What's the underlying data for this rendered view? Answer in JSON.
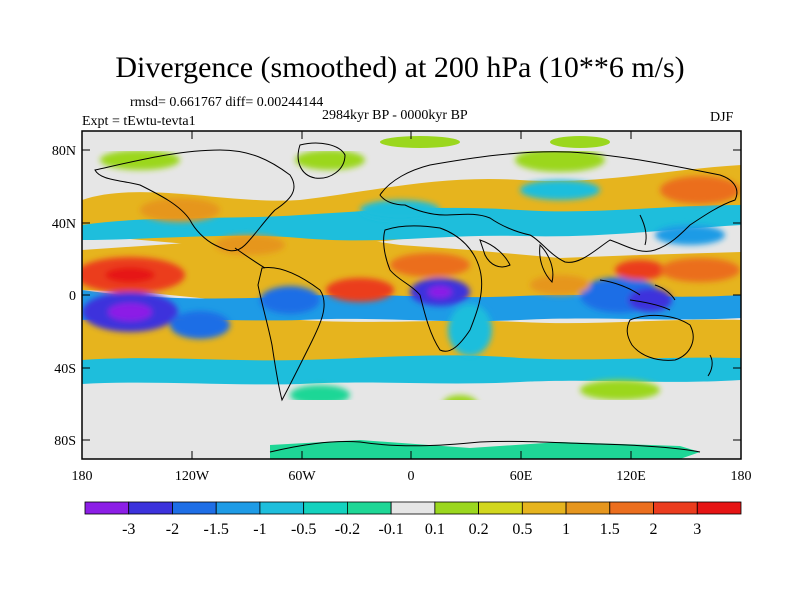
{
  "title": "Divergence (smoothed) at 200 hPa (10**6 m/s)",
  "stats": {
    "rmsd": "rmsd= 0.661767 diff= 0.00244144",
    "period": "2984kyr BP - 0000kyr BP",
    "experiment": "Expt = tEwtu-tevta1",
    "season": "DJF"
  },
  "axes": {
    "lat_labels": [
      "80N",
      "40N",
      "0",
      "40S",
      "80S"
    ],
    "lon_labels": [
      "180",
      "120W",
      "60W",
      "0",
      "60E",
      "120E",
      "180"
    ]
  },
  "legend": {
    "labels": [
      "-3",
      "-2",
      "-1.5",
      "-1",
      "-0.5",
      "-0.2",
      "-0.1",
      "0.1",
      "0.2",
      "0.5",
      "1",
      "1.5",
      "2",
      "3"
    ],
    "colors": [
      "#8c1ee6",
      "#3c32dc",
      "#1e6ee6",
      "#1e9be6",
      "#1ebedc",
      "#14d2be",
      "#1ed796",
      "#e6e6e6",
      "#9bd71e",
      "#d2d71e",
      "#e6b41e",
      "#e6961e",
      "#eb6e1e",
      "#eb3c1e",
      "#e61414"
    ]
  }
}
